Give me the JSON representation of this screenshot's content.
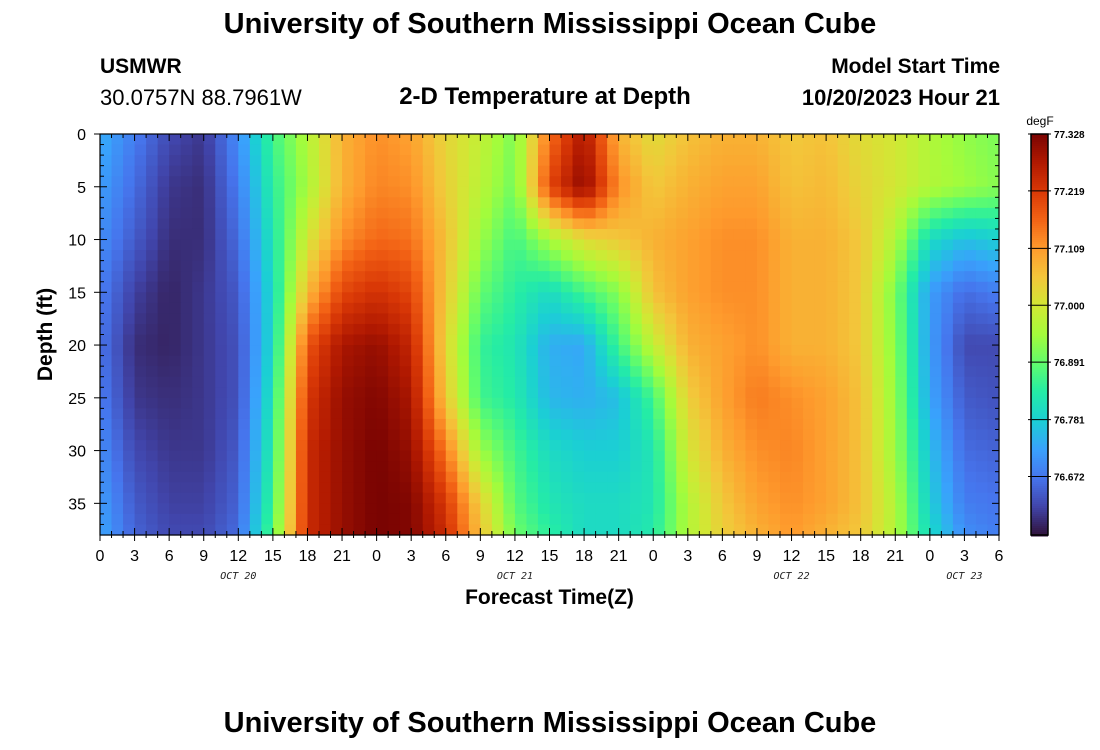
{
  "header": {
    "title": "University of Southern Mississippi Ocean Cube",
    "station_id": "USMWR",
    "station_coords": "30.0757N  88.7961W",
    "plot_title": "2-D Temperature at Depth",
    "model_start_label": "Model Start Time",
    "model_start_value": "10/20/2023 Hour 21"
  },
  "footer": {
    "title": "University of Southern Mississippi Ocean Cube"
  },
  "chart_data": {
    "type": "heatmap",
    "title": "2-D Temperature at Depth",
    "xlabel": "Forecast Time(Z)",
    "ylabel": "Depth (ft)",
    "x_hours_from_oct20_00z": [
      0,
      78
    ],
    "x_tick_labels": [
      "0",
      "3",
      "6",
      "9",
      "12",
      "15",
      "18",
      "21",
      "0",
      "3",
      "6",
      "9",
      "12",
      "15",
      "18",
      "21",
      "0",
      "3",
      "6",
      "9",
      "12",
      "15",
      "18",
      "21",
      "0",
      "3",
      "6"
    ],
    "date_labels": [
      {
        "label": "OCT 20",
        "hour": 12
      },
      {
        "label": "OCT 21",
        "hour": 36
      },
      {
        "label": "OCT 22",
        "hour": 60
      },
      {
        "label": "OCT 23",
        "hour": 75
      }
    ],
    "ylim": [
      0,
      38
    ],
    "y_ticks": [
      0,
      5,
      10,
      15,
      20,
      25,
      30,
      35
    ],
    "colorbar": {
      "unit": "degF",
      "range": [
        76.56,
        77.328
      ],
      "tick_values": [
        77.328,
        77.219,
        77.109,
        77.0,
        76.891,
        76.781,
        76.672
      ],
      "tick_labels": [
        "77.328",
        "77.219",
        "77.109",
        "77.000",
        "76.891",
        "76.781",
        "76.672"
      ],
      "colormap": [
        "#30123b",
        "#4145ab",
        "#4675ed",
        "#39a2fc",
        "#1bcfd4",
        "#24eca6",
        "#61fc6c",
        "#a4fc3b",
        "#d1e834",
        "#f3c63a",
        "#fe9b2d",
        "#f36315",
        "#d93806",
        "#b11901",
        "#7a0402"
      ]
    },
    "temperature_degF_grid": {
      "hours": [
        0,
        3,
        6,
        9,
        12,
        15,
        18,
        21,
        24,
        27,
        30,
        33,
        36,
        39,
        42,
        45,
        48,
        51,
        54,
        57,
        60,
        63,
        66,
        69,
        72,
        75,
        78
      ],
      "depths_ft": [
        0,
        5,
        10,
        15,
        20,
        25,
        30,
        35,
        38
      ],
      "values": [
        [
          76.74,
          76.68,
          76.62,
          76.6,
          76.7,
          76.86,
          76.96,
          77.08,
          77.12,
          77.1,
          77.03,
          76.98,
          76.91,
          77.15,
          77.28,
          77.08,
          77.02,
          77.06,
          77.08,
          77.08,
          77.05,
          77.06,
          77.02,
          77.0,
          76.96,
          76.93,
          76.91
        ],
        [
          76.72,
          76.66,
          76.6,
          76.59,
          76.68,
          76.84,
          76.95,
          77.08,
          77.13,
          77.12,
          77.04,
          76.97,
          76.9,
          77.2,
          77.31,
          77.12,
          77.05,
          77.08,
          77.1,
          77.1,
          77.06,
          77.07,
          77.03,
          77.0,
          76.96,
          76.94,
          76.92
        ],
        [
          76.7,
          76.64,
          76.59,
          76.59,
          76.66,
          76.82,
          77.0,
          77.12,
          77.16,
          77.15,
          77.06,
          76.94,
          76.86,
          76.95,
          77.02,
          77.05,
          77.08,
          77.1,
          77.12,
          77.12,
          77.08,
          77.08,
          77.05,
          76.96,
          76.8,
          76.76,
          76.78
        ],
        [
          76.68,
          76.61,
          76.58,
          76.6,
          76.64,
          76.8,
          77.07,
          77.2,
          77.23,
          77.2,
          77.05,
          76.89,
          76.84,
          76.8,
          76.86,
          76.92,
          77.06,
          77.1,
          77.12,
          77.12,
          77.08,
          77.08,
          77.05,
          76.91,
          76.72,
          76.66,
          76.68
        ],
        [
          76.67,
          76.59,
          76.58,
          76.6,
          76.63,
          76.8,
          77.18,
          77.28,
          77.3,
          77.25,
          77.03,
          76.85,
          76.82,
          76.74,
          76.73,
          76.86,
          76.98,
          77.08,
          77.1,
          77.12,
          77.08,
          77.08,
          77.05,
          76.92,
          76.72,
          76.62,
          76.62
        ],
        [
          76.68,
          76.6,
          76.59,
          76.6,
          76.63,
          76.82,
          77.22,
          77.3,
          77.32,
          77.28,
          77.05,
          76.86,
          76.83,
          76.75,
          76.74,
          76.76,
          76.86,
          77.04,
          77.1,
          77.14,
          77.12,
          77.1,
          77.06,
          76.93,
          76.73,
          76.64,
          76.63
        ],
        [
          76.7,
          76.62,
          76.6,
          76.6,
          76.64,
          76.84,
          77.24,
          77.3,
          77.33,
          77.3,
          77.14,
          76.94,
          76.86,
          76.8,
          76.78,
          76.78,
          76.82,
          77.0,
          77.08,
          77.12,
          77.13,
          77.1,
          77.06,
          76.94,
          76.76,
          76.66,
          76.65
        ],
        [
          76.72,
          76.64,
          76.61,
          76.61,
          76.65,
          76.86,
          77.24,
          77.3,
          77.33,
          77.32,
          77.22,
          77.04,
          76.88,
          76.82,
          76.8,
          76.8,
          76.82,
          76.96,
          77.05,
          77.1,
          77.12,
          77.1,
          77.06,
          76.96,
          76.78,
          76.68,
          76.67
        ],
        [
          76.73,
          76.65,
          76.62,
          76.62,
          76.66,
          76.88,
          77.24,
          77.3,
          77.33,
          77.32,
          77.24,
          77.06,
          76.9,
          76.84,
          76.8,
          76.8,
          76.83,
          76.96,
          77.04,
          77.08,
          77.11,
          77.08,
          77.05,
          76.96,
          76.8,
          76.7,
          76.68
        ]
      ]
    }
  }
}
